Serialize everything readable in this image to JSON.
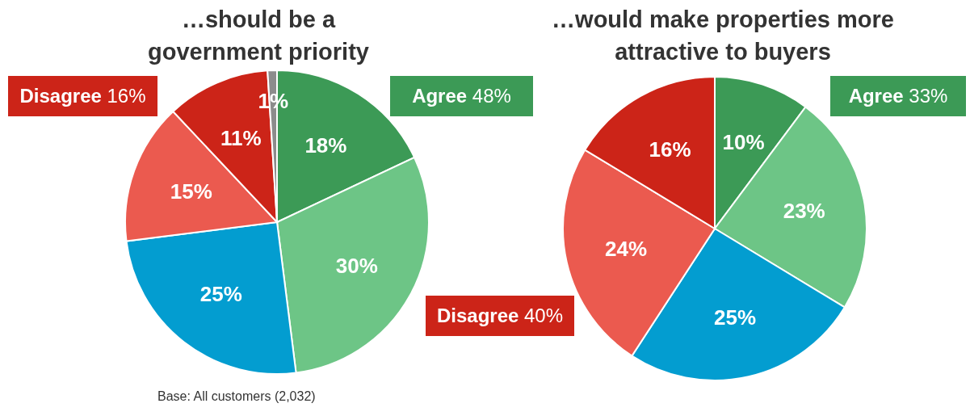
{
  "chart_data": [
    {
      "type": "pie",
      "title": "…should be a government priority",
      "categories": [
        null,
        null,
        null,
        null,
        null,
        null
      ],
      "values": [
        18,
        30,
        25,
        15,
        11,
        1
      ],
      "colors": [
        "#3c9a56",
        "#6dc586",
        "#039dd0",
        "#eb5a4f",
        "#cc2418",
        "#8c8c8c"
      ],
      "value_labels": [
        "18%",
        "30%",
        "25%",
        "15%",
        "11%",
        "1%"
      ],
      "annotations": [
        "Agree 48%",
        "Disagree 16%",
        "Base: All customers (2,032)"
      ]
    },
    {
      "type": "pie",
      "title": "…would make properties more attractive to buyers",
      "categories": [
        null,
        null,
        null,
        null,
        null
      ],
      "values": [
        10,
        23,
        25,
        24,
        16
      ],
      "colors": [
        "#3c9a56",
        "#6dc586",
        "#039dd0",
        "#eb5a4f",
        "#cc2418"
      ],
      "value_labels": [
        "10%",
        "23%",
        "25%",
        "24%",
        "16%"
      ],
      "annotations": [
        "Agree 33%",
        "Disagree 40%"
      ]
    }
  ]
}
